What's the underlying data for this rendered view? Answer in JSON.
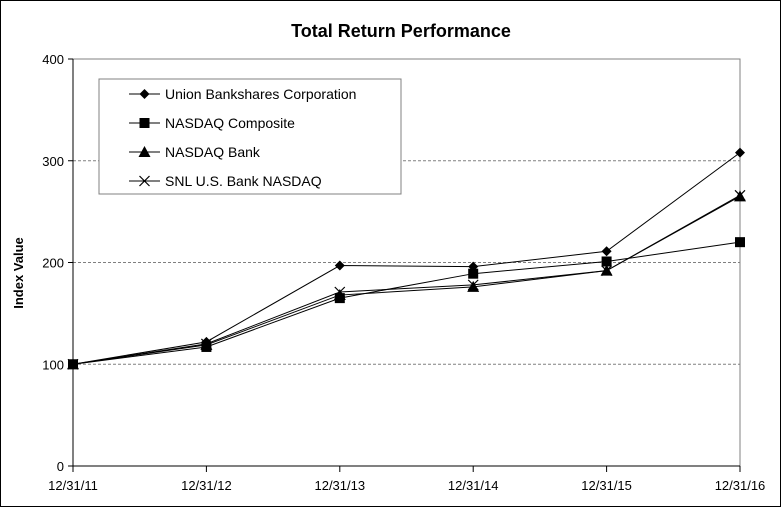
{
  "chart_data": {
    "type": "line",
    "title": "Total Return Performance",
    "xlabel": "",
    "ylabel": "Index Value",
    "x": [
      "12/31/11",
      "12/31/12",
      "12/31/13",
      "12/31/14",
      "12/31/15",
      "12/31/16"
    ],
    "ylim": [
      0,
      400
    ],
    "yticks": [
      0,
      100,
      200,
      300,
      400
    ],
    "grid": "horizontal dashed at 100, 200, 300",
    "legend_position": "top-left",
    "series": [
      {
        "name": "Union Bankshares Corporation",
        "marker": "diamond",
        "values": [
          100,
          122,
          197,
          196,
          211,
          308
        ]
      },
      {
        "name": "NASDAQ Composite",
        "marker": "square",
        "values": [
          100,
          117,
          165,
          189,
          201,
          220
        ]
      },
      {
        "name": "NASDAQ Bank",
        "marker": "triangle",
        "values": [
          100,
          119,
          168,
          176,
          192,
          265
        ]
      },
      {
        "name": "SNL U.S. Bank NASDAQ",
        "marker": "x",
        "values": [
          100,
          120,
          171,
          178,
          192,
          266
        ]
      }
    ]
  }
}
